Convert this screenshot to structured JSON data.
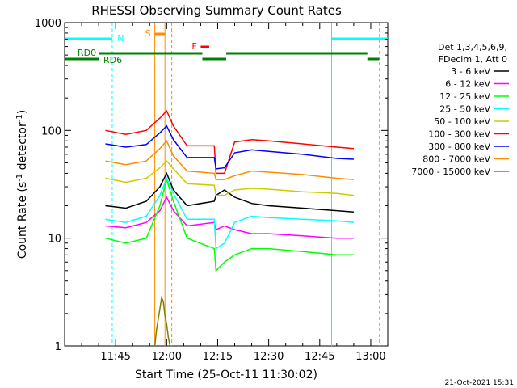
{
  "chart_data": {
    "type": "line",
    "title": "RHESSI Observing Summary Count Rates",
    "xlabel": "Start Time (25-Oct-11 11:30:02)",
    "ylabel_pre": "Count Rate (s",
    "ylabel_sup": "-1",
    "ylabel_post": " detector",
    "ylabel_sup2": "-1",
    "ylabel_end": ")",
    "y_scale": "log",
    "ylim": [
      1,
      1000
    ],
    "xlim_minutes": [
      0,
      95
    ],
    "x_ticks": [
      {
        "minutes": 15,
        "label": "11:45"
      },
      {
        "minutes": 30,
        "label": "12:00"
      },
      {
        "minutes": 45,
        "label": "12:15"
      },
      {
        "minutes": 60,
        "label": "12:30"
      },
      {
        "minutes": 75,
        "label": "12:45"
      },
      {
        "minutes": 90,
        "label": "13:00"
      }
    ],
    "y_ticks": [
      {
        "value": 1,
        "label": "1"
      },
      {
        "value": 10,
        "label": "10"
      },
      {
        "value": 100,
        "label": "100"
      },
      {
        "value": 1000,
        "label": "1000"
      }
    ],
    "legend_position": "right",
    "legend_header": [
      "Det 1,3,4,5,6,9,",
      "FDecim 1, Att 0"
    ],
    "series": [
      {
        "name": "3 - 6 keV",
        "color": "#000000",
        "points": [
          [
            12,
            20
          ],
          [
            18,
            19
          ],
          [
            24,
            22
          ],
          [
            28,
            30
          ],
          [
            30,
            40
          ],
          [
            32,
            28
          ],
          [
            36,
            20
          ],
          [
            44,
            22
          ],
          [
            44.5,
            25
          ],
          [
            47,
            28
          ],
          [
            50,
            24
          ],
          [
            55,
            21
          ],
          [
            60,
            20
          ],
          [
            70,
            19
          ],
          [
            80,
            18
          ],
          [
            85,
            17.5
          ]
        ]
      },
      {
        "name": "6 - 12 keV",
        "color": "#ff00ff",
        "points": [
          [
            12,
            13
          ],
          [
            18,
            12.5
          ],
          [
            24,
            14
          ],
          [
            28,
            18
          ],
          [
            30,
            24
          ],
          [
            32,
            18
          ],
          [
            36,
            13
          ],
          [
            44,
            14
          ],
          [
            44.5,
            12
          ],
          [
            47,
            13
          ],
          [
            50,
            12
          ],
          [
            55,
            11
          ],
          [
            60,
            11
          ],
          [
            70,
            10.5
          ],
          [
            80,
            10
          ],
          [
            85,
            10
          ]
        ]
      },
      {
        "name": "12 - 25 keV",
        "color": "#00ff00",
        "points": [
          [
            12,
            10
          ],
          [
            18,
            9
          ],
          [
            24,
            10
          ],
          [
            28,
            20
          ],
          [
            30,
            35
          ],
          [
            32,
            22
          ],
          [
            36,
            10
          ],
          [
            44,
            8
          ],
          [
            44.5,
            5
          ],
          [
            47,
            6
          ],
          [
            50,
            7
          ],
          [
            55,
            8
          ],
          [
            60,
            8
          ],
          [
            70,
            7.5
          ],
          [
            80,
            7
          ],
          [
            85,
            7
          ]
        ]
      },
      {
        "name": "25 - 50 keV",
        "color": "#00ffff",
        "points": [
          [
            12,
            15
          ],
          [
            18,
            14
          ],
          [
            24,
            16
          ],
          [
            28,
            25
          ],
          [
            30,
            36
          ],
          [
            32,
            26
          ],
          [
            36,
            15
          ],
          [
            44,
            15
          ],
          [
            44.5,
            8
          ],
          [
            47,
            9
          ],
          [
            50,
            14
          ],
          [
            55,
            16
          ],
          [
            60,
            15.5
          ],
          [
            70,
            15
          ],
          [
            80,
            14.5
          ],
          [
            85,
            14
          ]
        ]
      },
      {
        "name": "50 - 100 keV",
        "color": "#cccc00",
        "points": [
          [
            12,
            36
          ],
          [
            18,
            33
          ],
          [
            24,
            36
          ],
          [
            28,
            45
          ],
          [
            30,
            52
          ],
          [
            32,
            44
          ],
          [
            36,
            32
          ],
          [
            44,
            31
          ],
          [
            44.5,
            25
          ],
          [
            47,
            25
          ],
          [
            50,
            28
          ],
          [
            55,
            29
          ],
          [
            60,
            28.5
          ],
          [
            70,
            27
          ],
          [
            80,
            26
          ],
          [
            85,
            25
          ]
        ]
      },
      {
        "name": "100 - 300 keV",
        "color": "#ff0000",
        "points": [
          [
            12,
            100
          ],
          [
            18,
            92
          ],
          [
            24,
            100
          ],
          [
            28,
            130
          ],
          [
            30,
            152
          ],
          [
            32,
            110
          ],
          [
            36,
            72
          ],
          [
            44,
            72
          ],
          [
            44.5,
            40
          ],
          [
            47,
            40
          ],
          [
            50,
            78
          ],
          [
            55,
            82
          ],
          [
            60,
            80
          ],
          [
            70,
            75
          ],
          [
            80,
            70
          ],
          [
            85,
            68
          ]
        ]
      },
      {
        "name": "300 - 800 keV",
        "color": "#0000ff",
        "points": [
          [
            12,
            75
          ],
          [
            18,
            70
          ],
          [
            24,
            74
          ],
          [
            28,
            95
          ],
          [
            30,
            110
          ],
          [
            32,
            82
          ],
          [
            36,
            56
          ],
          [
            44,
            56
          ],
          [
            44.5,
            44
          ],
          [
            47,
            45
          ],
          [
            50,
            62
          ],
          [
            55,
            66
          ],
          [
            60,
            64
          ],
          [
            70,
            60
          ],
          [
            80,
            55
          ],
          [
            85,
            54
          ]
        ]
      },
      {
        "name": "800 - 7000 keV",
        "color": "#ff8c00",
        "points": [
          [
            12,
            52
          ],
          [
            18,
            48
          ],
          [
            24,
            52
          ],
          [
            28,
            68
          ],
          [
            30,
            80
          ],
          [
            32,
            58
          ],
          [
            36,
            42
          ],
          [
            44,
            40
          ],
          [
            44.5,
            35
          ],
          [
            47,
            35
          ],
          [
            50,
            38
          ],
          [
            55,
            42
          ],
          [
            60,
            41
          ],
          [
            70,
            39
          ],
          [
            80,
            36
          ],
          [
            85,
            35
          ]
        ]
      },
      {
        "name": "7000 - 15000 keV",
        "color": "#808000",
        "points": [
          [
            26.5,
            1
          ],
          [
            27,
            1.4
          ],
          [
            28,
            2.2
          ],
          [
            28.5,
            2.8
          ],
          [
            29,
            2.6
          ],
          [
            29.5,
            1.9
          ],
          [
            30,
            1.6
          ],
          [
            30.5,
            1.2
          ],
          [
            31,
            1
          ]
        ]
      }
    ],
    "annotations": {
      "N": "N",
      "S": "S",
      "F": "F",
      "RD0": "RD0",
      "RD6": "RD6"
    },
    "timestamp": "21-Oct-2021 15:31"
  }
}
